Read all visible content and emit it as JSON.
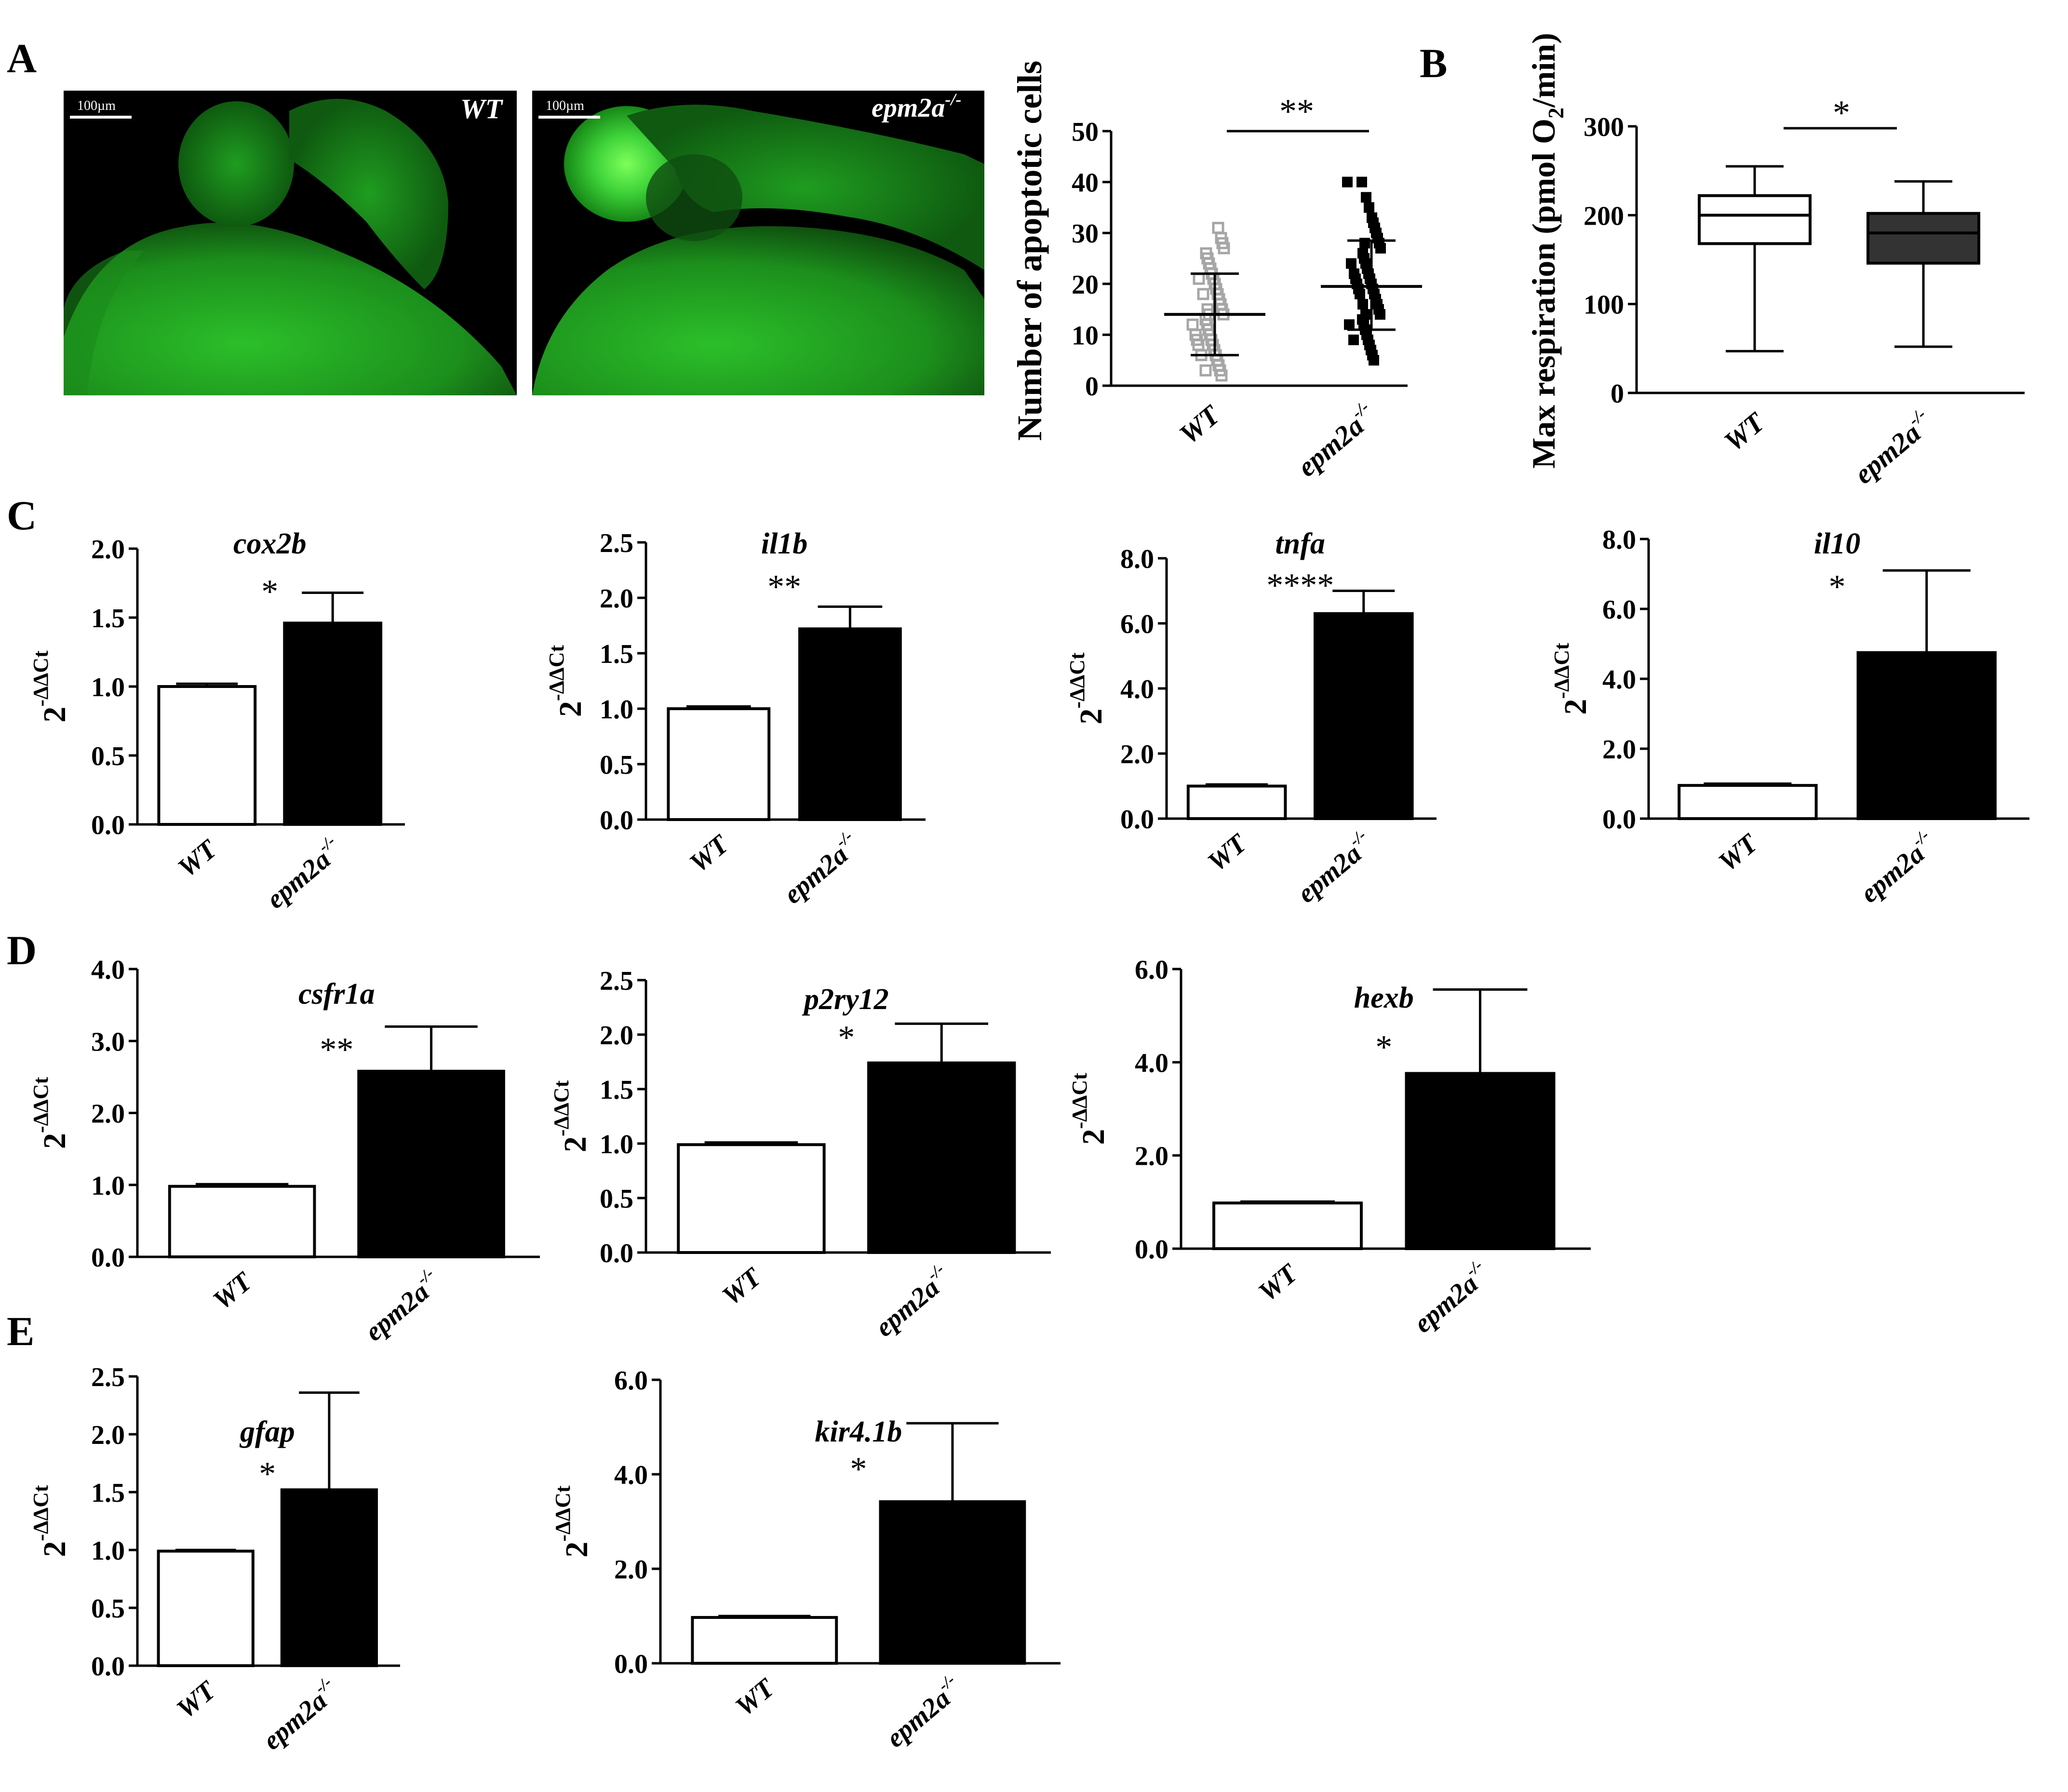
{
  "panel_letters": {
    "a": "A",
    "b": "B",
    "c": "C",
    "d": "D",
    "e": "E"
  },
  "micrographs": [
    {
      "label": "WT",
      "scale_bar": "100µm"
    },
    {
      "label": "epm2a",
      "label_sup": "-/-",
      "scale_bar": "100µm"
    }
  ],
  "group_labels": {
    "wt": "WT",
    "ko": "epm2a",
    "ko_sup": "-/-"
  },
  "qpcr_ylabel": {
    "base": "2",
    "sup": "-ΔΔCt"
  },
  "colors": {
    "wt_fill": "#ffffff",
    "ko_fill": "#000000",
    "ko_box_fill": "#333333",
    "wt_points": "#a6a6a6",
    "ko_points": "#000000",
    "fluorescence": "#1fa61f"
  },
  "chart_data": [
    {
      "id": "apoptosis",
      "panel": "A",
      "type": "scatter",
      "ylabel": "Number of apoptotic cells",
      "ylim": [
        0,
        50
      ],
      "yticks": [
        "0",
        "10",
        "20",
        "30",
        "40",
        "50"
      ],
      "categories": [
        "WT",
        "epm2a-/-"
      ],
      "significance": "**",
      "series": [
        {
          "name": "WT",
          "mean": 14,
          "sd_low": 6,
          "sd_high": 22,
          "values": [
            31,
            29,
            28,
            27,
            26,
            25,
            24,
            23,
            22,
            21,
            21,
            20,
            19,
            18,
            18,
            17,
            16,
            15,
            15,
            14,
            14,
            13,
            12,
            12,
            11,
            10,
            10,
            9,
            9,
            8,
            8,
            7,
            6,
            6,
            5,
            4,
            3,
            3,
            2
          ]
        },
        {
          "name": "epm2a-/-",
          "mean": 19.5,
          "sd_low": 11,
          "sd_high": 28.5,
          "values": [
            40,
            40,
            37,
            35,
            33,
            32,
            31,
            30,
            29,
            28,
            28,
            27,
            26,
            25,
            24,
            24,
            23,
            22,
            22,
            21,
            21,
            20,
            20,
            19,
            19,
            18,
            18,
            17,
            16,
            16,
            15,
            14,
            14,
            13,
            12,
            12,
            11,
            10,
            9,
            9,
            8,
            7,
            6,
            5
          ]
        }
      ]
    },
    {
      "id": "respiration",
      "panel": "B",
      "type": "box",
      "ylabel": "Max respiration (pmol O2/min)",
      "ylim": [
        0,
        300
      ],
      "yticks": [
        "0",
        "100",
        "200",
        "300"
      ],
      "categories": [
        "WT",
        "epm2a-/-"
      ],
      "significance": "*",
      "boxes": [
        {
          "name": "WT",
          "min": 47,
          "q1": 168,
          "median": 200,
          "q3": 222,
          "max": 255
        },
        {
          "name": "epm2a-/-",
          "min": 52,
          "q1": 146,
          "median": 180,
          "q3": 202,
          "max": 238
        }
      ]
    },
    {
      "id": "cox2b",
      "panel": "C",
      "type": "bar",
      "title": "cox2b",
      "significance": "*",
      "ylim": [
        0,
        2.0
      ],
      "yticks": [
        "0.0",
        "0.5",
        "1.0",
        "1.5",
        "2.0"
      ],
      "categories": [
        "WT",
        "epm2a-/-"
      ],
      "values": [
        1.0,
        1.46
      ],
      "errors": [
        0.02,
        0.22
      ]
    },
    {
      "id": "il1b",
      "panel": "C",
      "type": "bar",
      "title": "il1b",
      "significance": "**",
      "ylim": [
        0,
        2.5
      ],
      "yticks": [
        "0.0",
        "0.5",
        "1.0",
        "1.5",
        "2.0",
        "2.5"
      ],
      "categories": [
        "WT",
        "epm2a-/-"
      ],
      "values": [
        1.0,
        1.72
      ],
      "errors": [
        0.02,
        0.2
      ]
    },
    {
      "id": "tnfa",
      "panel": "C",
      "type": "bar",
      "title": "tnfa",
      "significance": "****",
      "ylim": [
        0,
        8.0
      ],
      "yticks": [
        "0.0",
        "2.0",
        "4.0",
        "6.0",
        "8.0"
      ],
      "categories": [
        "WT",
        "epm2a-/-"
      ],
      "values": [
        1.0,
        6.3
      ],
      "errors": [
        0.05,
        0.7
      ]
    },
    {
      "id": "il10",
      "panel": "C",
      "type": "bar",
      "title": "il10",
      "significance": "*",
      "ylim": [
        0,
        8.0
      ],
      "yticks": [
        "0.0",
        "2.0",
        "4.0",
        "6.0",
        "8.0"
      ],
      "categories": [
        "WT",
        "epm2a-/-"
      ],
      "values": [
        0.95,
        4.75
      ],
      "errors": [
        0.05,
        2.35
      ]
    },
    {
      "id": "csfr1a",
      "panel": "D",
      "type": "bar",
      "title": "csfr1a",
      "significance": "**",
      "ylim": [
        0,
        4.0
      ],
      "yticks": [
        "0.0",
        "1.0",
        "2.0",
        "3.0",
        "4.0"
      ],
      "categories": [
        "WT",
        "epm2a-/-"
      ],
      "values": [
        0.98,
        2.58
      ],
      "errors": [
        0.03,
        0.62
      ]
    },
    {
      "id": "p2ry12",
      "panel": "D",
      "type": "bar",
      "title": "p2ry12",
      "significance": "*",
      "ylim": [
        0,
        2.5
      ],
      "yticks": [
        "0.0",
        "0.5",
        "1.0",
        "1.5",
        "2.0",
        "2.5"
      ],
      "categories": [
        "WT",
        "epm2a-/-"
      ],
      "values": [
        0.99,
        1.74
      ],
      "errors": [
        0.02,
        0.36
      ]
    },
    {
      "id": "hexb",
      "panel": "D",
      "type": "bar",
      "title": "hexb",
      "significance": "*",
      "ylim": [
        0,
        6.0
      ],
      "yticks": [
        "0.0",
        "2.0",
        "4.0",
        "6.0"
      ],
      "categories": [
        "WT",
        "epm2a-/-"
      ],
      "values": [
        0.98,
        3.76
      ],
      "errors": [
        0.03,
        1.8
      ]
    },
    {
      "id": "gfap",
      "panel": "E",
      "type": "bar",
      "title": "gfap",
      "significance": "*",
      "ylim": [
        0,
        2.5
      ],
      "yticks": [
        "0.0",
        "0.5",
        "1.0",
        "1.5",
        "2.0",
        "2.5"
      ],
      "categories": [
        "WT",
        "epm2a-/-"
      ],
      "values": [
        0.99,
        1.52
      ],
      "errors": [
        0.01,
        0.84
      ]
    },
    {
      "id": "kir41b",
      "panel": "E",
      "type": "bar",
      "title": "kir4.1b",
      "significance": "*",
      "ylim": [
        0,
        6.0
      ],
      "yticks": [
        "0.0",
        "2.0",
        "4.0",
        "6.0"
      ],
      "categories": [
        "WT",
        "epm2a-/-"
      ],
      "values": [
        0.97,
        3.42
      ],
      "errors": [
        0.03,
        1.66
      ]
    }
  ]
}
